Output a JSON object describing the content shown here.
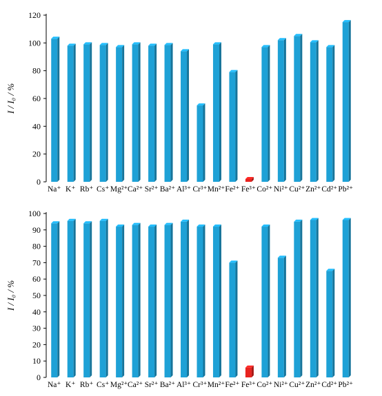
{
  "chart_data": [
    {
      "type": "bar",
      "ylabel": "I / I₀ / %",
      "ylim": [
        0,
        120
      ],
      "yticks": [
        0,
        20,
        40,
        60,
        80,
        100,
        120
      ],
      "grid": false,
      "categories": [
        "Na⁺",
        "K⁺",
        "Rb⁺",
        "Cs⁺",
        "Mg²⁺",
        "Ca²⁺",
        "Sr²⁺",
        "Ba²⁺",
        "Al³⁺",
        "Cr³⁺",
        "Mn²⁺",
        "Fe²⁺",
        "Fe³⁺",
        "Co²⁺",
        "Ni²⁺",
        "Cu²⁺",
        "Zn²⁺",
        "Cd²⁺",
        "Pb²⁺"
      ],
      "values": [
        103,
        98,
        99,
        98.5,
        97,
        99,
        98,
        98.5,
        94,
        55,
        99,
        79,
        2,
        97,
        102,
        105,
        100.5,
        97,
        115
      ],
      "colors": [
        "#1ea1d6",
        "#1ea1d6",
        "#1ea1d6",
        "#1ea1d6",
        "#1ea1d6",
        "#1ea1d6",
        "#1ea1d6",
        "#1ea1d6",
        "#1ea1d6",
        "#1ea1d6",
        "#1ea1d6",
        "#1ea1d6",
        "#e8231f",
        "#1ea1d6",
        "#1ea1d6",
        "#1ea1d6",
        "#1ea1d6",
        "#1ea1d6",
        "#1ea1d6"
      ]
    },
    {
      "type": "bar",
      "ylabel": "I / I₀ / %",
      "ylim": [
        0,
        100
      ],
      "yticks": [
        0,
        10,
        20,
        30,
        40,
        50,
        60,
        70,
        80,
        90,
        100
      ],
      "grid": false,
      "categories": [
        "Na⁺",
        "K⁺",
        "Rb⁺",
        "Cs⁺",
        "Mg²⁺",
        "Ca²⁺",
        "Sr²⁺",
        "Ba²⁺",
        "Al³⁺",
        "Cr³⁺",
        "Mn²⁺",
        "Fe²⁺",
        "Fe³⁺",
        "Co²⁺",
        "Ni²⁺",
        "Cu²⁺",
        "Zn²⁺",
        "Cd²⁺",
        "Pb²⁺"
      ],
      "values": [
        94,
        95.5,
        94,
        95.5,
        92,
        93,
        92,
        93,
        95,
        92,
        92,
        70,
        6,
        92,
        73,
        95,
        96,
        65,
        96
      ],
      "colors": [
        "#1ea1d6",
        "#1ea1d6",
        "#1ea1d6",
        "#1ea1d6",
        "#1ea1d6",
        "#1ea1d6",
        "#1ea1d6",
        "#1ea1d6",
        "#1ea1d6",
        "#1ea1d6",
        "#1ea1d6",
        "#1ea1d6",
        "#e8231f",
        "#1ea1d6",
        "#1ea1d6",
        "#1ea1d6",
        "#1ea1d6",
        "#1ea1d6",
        "#1ea1d6"
      ]
    }
  ]
}
